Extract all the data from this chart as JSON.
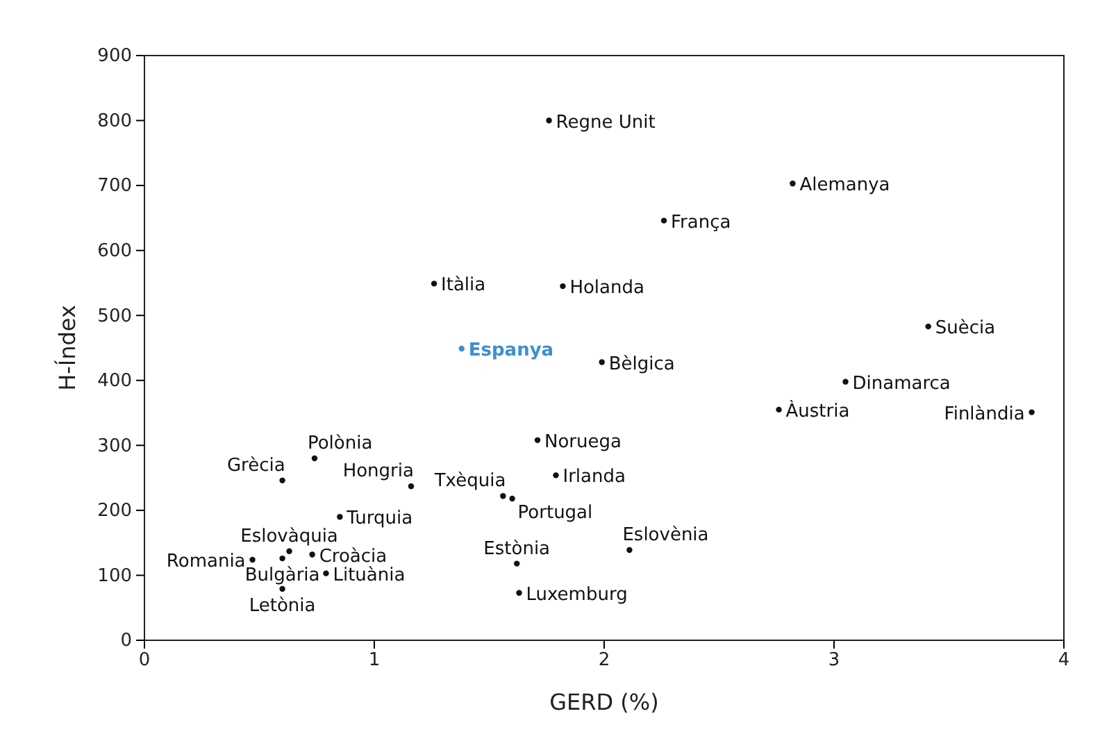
{
  "chart_data": {
    "type": "scatter",
    "xlabel": "GERD (%)",
    "ylabel": "H-Índex",
    "xlim": [
      0,
      4
    ],
    "xticks": [
      0,
      1,
      2,
      3,
      4
    ],
    "ylim": [
      0,
      900
    ],
    "yticks": [
      0,
      100,
      200,
      300,
      400,
      500,
      600,
      700,
      800,
      900
    ],
    "grid": false,
    "marker": "circle",
    "series": [
      {
        "color": "#111111",
        "x": [
          1.76,
          2.82,
          2.26,
          1.26,
          1.82,
          1.99,
          3.41,
          3.05,
          2.76,
          3.86,
          0.74,
          0.6,
          1.16,
          1.71,
          1.79,
          1.56,
          1.6,
          0.85,
          0.63,
          0.73,
          0.47,
          0.6,
          0.79,
          0.6,
          1.62,
          1.63,
          2.11
        ],
        "values": [
          800,
          703,
          646,
          549,
          545,
          428,
          483,
          398,
          355,
          351,
          280,
          246,
          237,
          308,
          254,
          222,
          218,
          190,
          137,
          132,
          124,
          126,
          103,
          79,
          118,
          73,
          139
        ]
      },
      {
        "color": "#3d8fd1",
        "x": [
          1.38
        ],
        "values": [
          449
        ]
      }
    ],
    "annotations": [
      {
        "text": "Regne Unit",
        "x": 1.76,
        "y": 800
      },
      {
        "text": "Alemanya",
        "x": 2.82,
        "y": 703
      },
      {
        "text": "França",
        "x": 2.26,
        "y": 646
      },
      {
        "text": "Itàlia",
        "x": 1.26,
        "y": 549
      },
      {
        "text": "Holanda",
        "x": 1.82,
        "y": 545
      },
      {
        "text": "Bèlgica",
        "x": 1.99,
        "y": 428
      },
      {
        "text": "Suècia",
        "x": 3.41,
        "y": 483
      },
      {
        "text": "Dinamarca",
        "x": 3.05,
        "y": 398
      },
      {
        "text": "Àustria",
        "x": 2.76,
        "y": 355
      },
      {
        "text": "Finlàndia",
        "x": 3.86,
        "y": 351
      },
      {
        "text": "Polònia",
        "x": 0.74,
        "y": 280
      },
      {
        "text": "Grècia",
        "x": 0.6,
        "y": 246
      },
      {
        "text": "Hongria",
        "x": 1.16,
        "y": 237
      },
      {
        "text": "Noruega",
        "x": 1.71,
        "y": 308
      },
      {
        "text": "Irlanda",
        "x": 1.79,
        "y": 254
      },
      {
        "text": "Txèquia",
        "x": 1.56,
        "y": 222
      },
      {
        "text": "Portugal",
        "x": 1.6,
        "y": 218
      },
      {
        "text": "Turquia",
        "x": 0.85,
        "y": 190
      },
      {
        "text": "Eslovàquia",
        "x": 0.63,
        "y": 137
      },
      {
        "text": "Croàcia",
        "x": 0.73,
        "y": 132
      },
      {
        "text": "Romania",
        "x": 0.47,
        "y": 124
      },
      {
        "text": "Bulgària",
        "x": 0.6,
        "y": 126
      },
      {
        "text": "Lituània",
        "x": 0.79,
        "y": 103
      },
      {
        "text": "Letònia",
        "x": 0.6,
        "y": 79
      },
      {
        "text": "Estònia",
        "x": 1.62,
        "y": 118
      },
      {
        "text": "Luxemburg",
        "x": 1.63,
        "y": 73
      },
      {
        "text": "Eslovènia",
        "x": 2.11,
        "y": 139
      },
      {
        "text": "Espanya",
        "x": 1.38,
        "y": 449
      }
    ]
  }
}
